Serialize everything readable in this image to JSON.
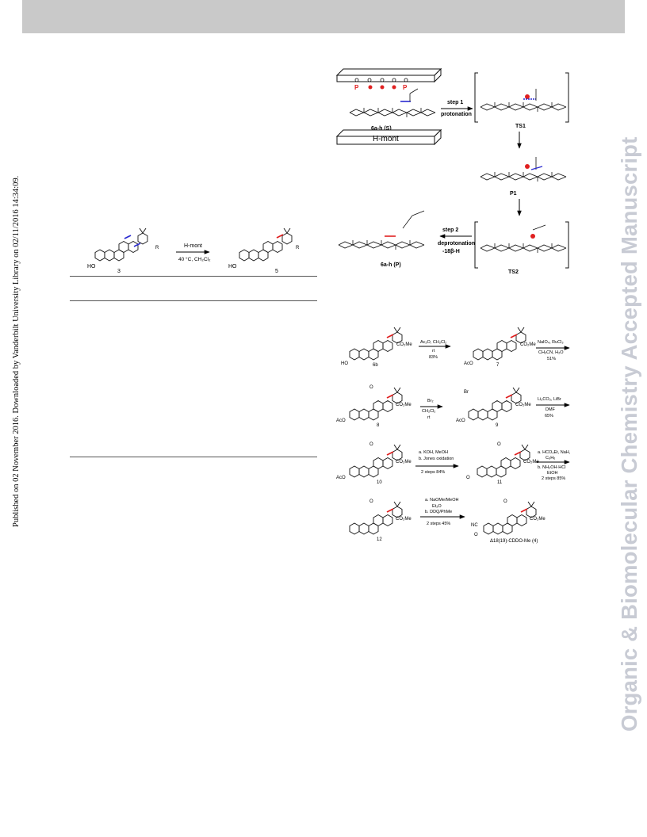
{
  "side_note": "Published on 02 November 2016. Downloaded by Vanderbilt University Library on 02/11/2016 14:34:09.",
  "watermark": "Organic & Biomolecular Chemistry Accepted Manuscript",
  "mechanism": {
    "clay_label": "H-mont",
    "site_labels": [
      "P",
      "P"
    ],
    "substrate_label": "6a-h (S)",
    "step1_label": "step 1",
    "step1_sub": "protonation",
    "ts1_label": "TS1",
    "p1_label": "P1",
    "step2_label": "step 2",
    "step2_sub": "deprotonation",
    "step2_sub2": "-18β-H",
    "ts2_label": "TS2",
    "product_label": "6a-h (P)"
  },
  "scheme1": {
    "reagent": "H-mont",
    "conditions": "40 °C, CH₂Cl₂",
    "start_label": "3",
    "product_label": "5",
    "ho": "HO",
    "r_label": "R"
  },
  "scheme2": {
    "c1": {
      "r1": "Ac₂O, CH₂Cl₂",
      "r2": "rt",
      "r3": "83%"
    },
    "c2": {
      "r1": "NaIO₄, RuCl₃",
      "r2": "CH₃CN, H₂O",
      "r3": "51%"
    },
    "c3": {
      "r1": "Br₂",
      "r2": "CH₂Cl₂",
      "r3": "rt"
    },
    "c4": {
      "r1": "Li₂CO₃, LiBr",
      "r2": "DMF",
      "r3": "65%"
    },
    "c5": {
      "r1": "a. KOH, MeOH",
      "r2": "b. Jones oxidation",
      "r3": "2 steps 84%"
    },
    "c6": {
      "r1": "a. HCO₂Et, NaH,",
      "r2": "C₆H₆",
      "r3": "b. NH₂OH·HCl",
      "r4": "EtOH",
      "r5": "2 steps 85%"
    },
    "c7": {
      "r1": "a. NaOMe/MeOH",
      "r2": "Et₂O",
      "r3": "b. DDQ/PhMe",
      "r4": "2 steps 45%"
    },
    "labels": {
      "sm": "6b",
      "c7": "7",
      "c8": "8",
      "c9": "9",
      "c10": "10",
      "c11": "11",
      "c12": "12",
      "final": "Δ18(19)-CDDO-Me (4)"
    },
    "subst": {
      "co2me": "CO₂Me",
      "aco": "AcO",
      "ho": "HO",
      "br": "Br",
      "o": "O",
      "nc": "NC"
    }
  },
  "colors": {
    "header": "#c9c9c9",
    "watermark": "#c8cbd4",
    "red": "#e02020",
    "blue": "#2a2ad0"
  }
}
